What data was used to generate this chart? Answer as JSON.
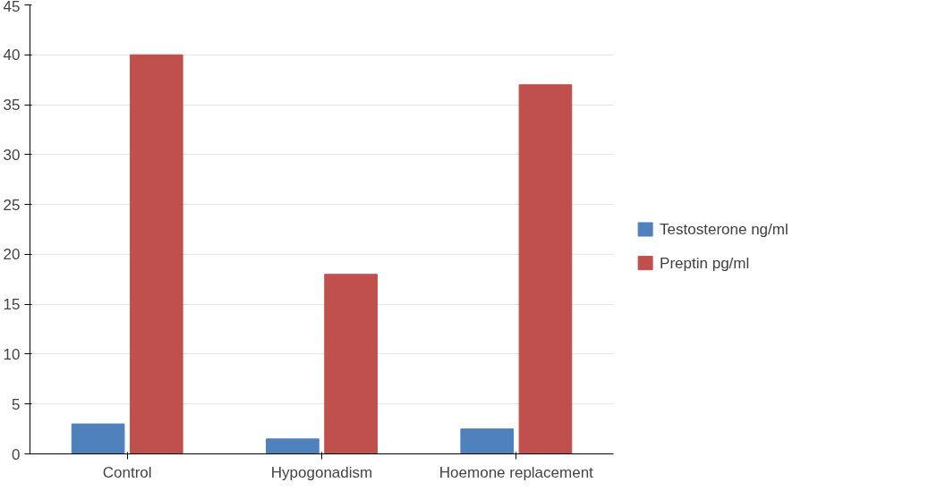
{
  "chart_data": {
    "type": "bar",
    "categories": [
      "Control",
      "Hypogonadism",
      "Hoemone replacement"
    ],
    "series": [
      {
        "name": "Testosterone ng/ml",
        "color": "#4f81bd",
        "values": [
          3,
          1.5,
          2.5
        ]
      },
      {
        "name": "Preptin pg/ml",
        "color": "#c0504d",
        "values": [
          40,
          18,
          37
        ]
      }
    ],
    "ylim": [
      0,
      45
    ],
    "yticks": [
      0,
      5,
      10,
      15,
      20,
      25,
      30,
      35,
      40,
      45
    ],
    "grid": "y",
    "legend": "right"
  }
}
